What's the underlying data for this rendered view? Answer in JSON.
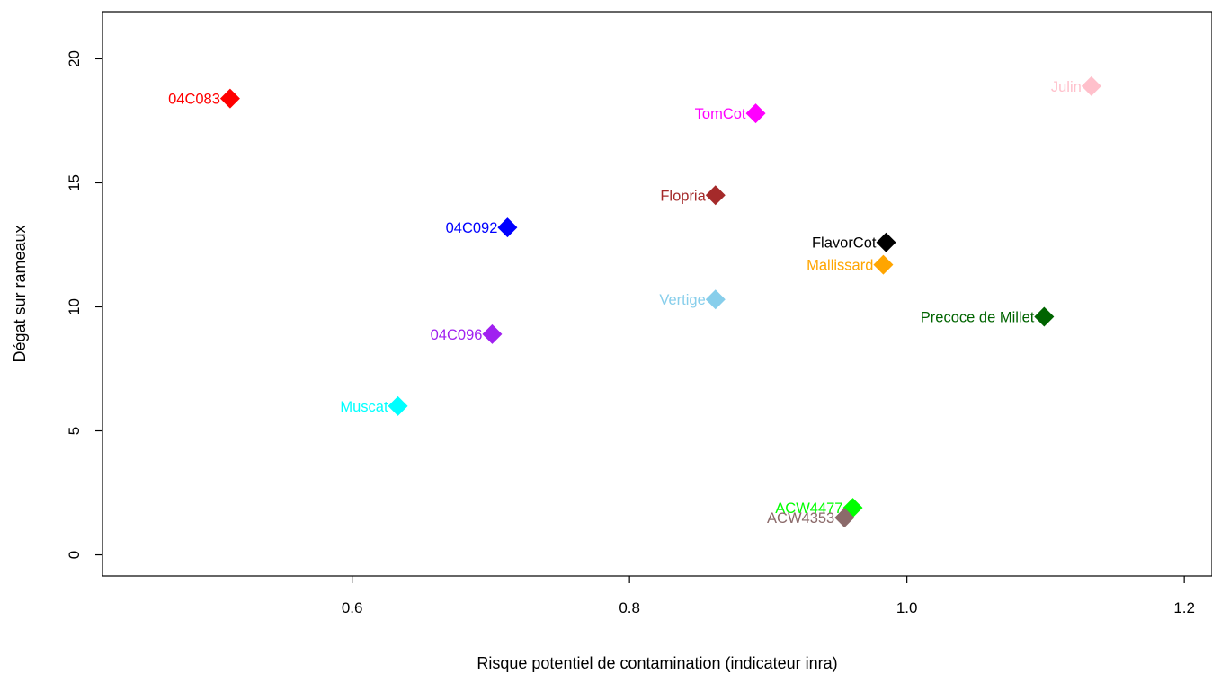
{
  "chart_data": {
    "type": "scatter",
    "title": "",
    "xlabel": "Risque potentiel de contamination (indicateur inra)",
    "ylabel": "Dégat sur rameaux",
    "xlim": [
      0.42,
      1.22
    ],
    "ylim": [
      -0.85,
      21.9
    ],
    "x_ticks": [
      0.6,
      0.8,
      1.0,
      1.2
    ],
    "x_tick_labels": [
      "0.6",
      "0.8",
      "1.0",
      "1.2"
    ],
    "y_ticks": [
      0,
      5,
      10,
      15,
      20
    ],
    "y_tick_labels": [
      "0",
      "5",
      "10",
      "15",
      "20"
    ],
    "grid": false,
    "marker": "diamond",
    "points": [
      {
        "label": "04C083",
        "x": 0.512,
        "y": 18.4,
        "color": "#ff0000"
      },
      {
        "label": "Julin",
        "x": 1.133,
        "y": 18.9,
        "color": "#ffc0cb"
      },
      {
        "label": "TomCot",
        "x": 0.891,
        "y": 17.8,
        "color": "#ff00ff"
      },
      {
        "label": "Flopria",
        "x": 0.862,
        "y": 14.5,
        "color": "#a52a2a"
      },
      {
        "label": "04C092",
        "x": 0.712,
        "y": 13.2,
        "color": "#0000ff"
      },
      {
        "label": "FlavorCot",
        "x": 0.985,
        "y": 12.6,
        "color": "#000000"
      },
      {
        "label": "Mallissard",
        "x": 0.983,
        "y": 11.7,
        "color": "#ffa500"
      },
      {
        "label": "Vertige",
        "x": 0.862,
        "y": 10.3,
        "color": "#87ceeb"
      },
      {
        "label": "Precoce de Millet",
        "x": 1.099,
        "y": 9.6,
        "color": "#006400"
      },
      {
        "label": "04C096",
        "x": 0.701,
        "y": 8.9,
        "color": "#a020f0"
      },
      {
        "label": "Muscat",
        "x": 0.633,
        "y": 6.0,
        "color": "#00ffff"
      },
      {
        "label": "ACW4477",
        "x": 0.961,
        "y": 1.9,
        "color": "#00ff00"
      },
      {
        "label": "ACW4353",
        "x": 0.955,
        "y": 1.5,
        "color": "#8b6a6a"
      }
    ]
  }
}
